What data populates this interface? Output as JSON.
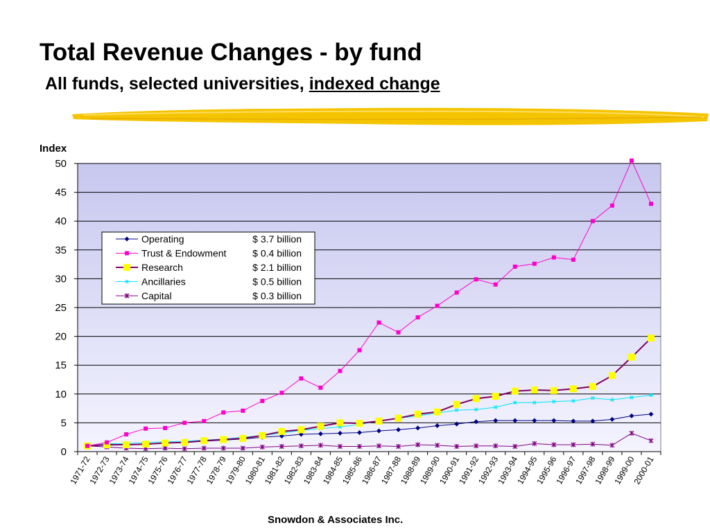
{
  "slide": {
    "title": "Total Revenue Changes - by fund",
    "subtitle_main": "All funds, selected universities,",
    "subtitle_underlined": "indexed change",
    "footer_name": "Snowdon & Associates Inc",
    "footer_period": "."
  },
  "chart_data": {
    "type": "line",
    "title": "",
    "xlabel": "",
    "ylabel": "Index",
    "ylim": [
      0,
      50
    ],
    "yticks": [
      0,
      5,
      10,
      15,
      20,
      25,
      30,
      35,
      40,
      45,
      50
    ],
    "grid": true,
    "legend_position": "top-left",
    "categories": [
      "1971-72",
      "1972-73",
      "1973-74",
      "1974-75",
      "1975-76",
      "1976-77",
      "1977-78",
      "1978-79",
      "1979-80",
      "1980-81",
      "1981-82",
      "1982-83",
      "1983-84",
      "1984-85",
      "1985-86",
      "1986-87",
      "1987-88",
      "1988-89",
      "1989-90",
      "1990-91",
      "1991-92",
      "1992-93",
      "1993-94",
      "1994-95",
      "1995-96",
      "1996-97",
      "1997-98",
      "1998-99",
      "1999-00",
      "2000-01"
    ],
    "series": [
      {
        "name": "Operating",
        "amount": "$ 3.7 billion",
        "color": "#000080",
        "marker": "diamond",
        "values": [
          1.0,
          1.1,
          1.2,
          1.3,
          1.5,
          1.6,
          1.8,
          2.0,
          2.2,
          2.5,
          2.7,
          3.0,
          3.1,
          3.2,
          3.3,
          3.6,
          3.8,
          4.1,
          4.5,
          4.8,
          5.2,
          5.4,
          5.4,
          5.4,
          5.4,
          5.3,
          5.3,
          5.6,
          6.2,
          6.5
        ]
      },
      {
        "name": "Trust & Endowment",
        "amount": "$ 0.4 billion",
        "color": "#ff00cc",
        "marker": "square",
        "values": [
          1.0,
          1.6,
          3.0,
          4.0,
          4.1,
          5.0,
          5.3,
          6.8,
          7.1,
          8.8,
          10.2,
          12.7,
          11.1,
          14.0,
          17.6,
          22.4,
          20.7,
          23.3,
          25.3,
          27.6,
          29.9,
          29.0,
          32.1,
          32.6,
          33.7,
          33.3,
          40.0,
          42.7,
          50.5,
          43.0
        ]
      },
      {
        "name": "Research",
        "amount": "$ 2.1 billion",
        "color": "#800060",
        "marker": "square",
        "marker_color": "#ffff00",
        "values": [
          1.0,
          1.2,
          1.2,
          1.3,
          1.5,
          1.6,
          1.9,
          2.1,
          2.3,
          2.8,
          3.5,
          3.8,
          4.4,
          5.0,
          4.9,
          5.3,
          5.8,
          6.5,
          6.9,
          8.2,
          9.2,
          9.6,
          10.5,
          10.7,
          10.6,
          10.9,
          11.3,
          13.2,
          16.4,
          19.7
        ]
      },
      {
        "name": "Ancillaries",
        "amount": "$ 0.5 billion",
        "color": "#00e5ff",
        "marker": "asterisk",
        "values": [
          1.0,
          1.4,
          1.4,
          1.6,
          1.7,
          1.8,
          2.0,
          2.2,
          2.5,
          2.8,
          3.2,
          3.7,
          4.0,
          4.3,
          4.7,
          5.3,
          5.8,
          6.2,
          6.7,
          7.2,
          7.3,
          7.7,
          8.5,
          8.5,
          8.7,
          8.8,
          9.3,
          9.0,
          9.4,
          9.8
        ]
      },
      {
        "name": "Capital",
        "amount": "$ 0.3 billion",
        "color": "#800080",
        "marker": "x",
        "values": [
          1.0,
          0.8,
          0.6,
          0.5,
          0.6,
          0.5,
          0.6,
          0.6,
          0.6,
          0.8,
          0.9,
          1.0,
          1.1,
          0.9,
          0.9,
          1.0,
          0.9,
          1.2,
          1.1,
          0.9,
          1.0,
          1.0,
          0.9,
          1.4,
          1.2,
          1.2,
          1.3,
          1.1,
          3.2,
          1.9
        ]
      }
    ]
  }
}
